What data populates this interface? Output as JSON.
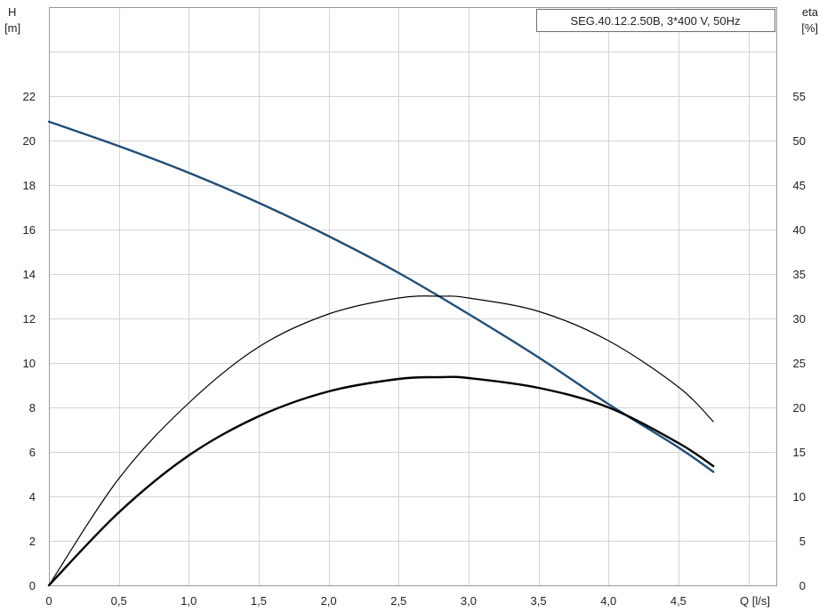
{
  "chart_data": {
    "type": "line",
    "title": "SEG.40.12.2.50B, 3*400 V, 50Hz",
    "xlabel": "Q [l/s]",
    "ylabel_left": [
      "H",
      "[m]"
    ],
    "ylabel_right": [
      "eta",
      "[%]"
    ],
    "xlim": [
      0,
      5.2
    ],
    "ylim_left": [
      0,
      26
    ],
    "ylim_right": [
      0,
      65
    ],
    "grid": true,
    "x_ticks": [
      "0",
      "0,5",
      "1,0",
      "1,5",
      "2,0",
      "2,5",
      "3,0",
      "3,5",
      "4,0",
      "4,5"
    ],
    "x_tick_values": [
      0,
      0.5,
      1.0,
      1.5,
      2.0,
      2.5,
      3.0,
      3.5,
      4.0,
      4.5
    ],
    "y_left_ticks": [
      "0",
      "2",
      "4",
      "6",
      "8",
      "10",
      "12",
      "14",
      "16",
      "18",
      "20",
      "22"
    ],
    "y_left_tick_values": [
      0,
      2,
      4,
      6,
      8,
      10,
      12,
      14,
      16,
      18,
      20,
      22
    ],
    "y_right_ticks": [
      "0",
      "5",
      "10",
      "15",
      "20",
      "25",
      "30",
      "35",
      "40",
      "45",
      "50",
      "55"
    ],
    "y_right_tick_values": [
      0,
      5,
      10,
      15,
      20,
      25,
      30,
      35,
      40,
      45,
      50,
      55
    ],
    "series": [
      {
        "axis": "left",
        "color": "#1f4e79",
        "width": 2.4,
        "x": [
          0,
          0.5,
          1.0,
          1.5,
          2.0,
          2.5,
          3.0,
          3.5,
          4.0,
          4.5,
          4.75
        ],
        "y": [
          20.85,
          19.75,
          18.55,
          17.2,
          15.7,
          14.05,
          12.2,
          10.25,
          8.15,
          6.2,
          5.1
        ]
      },
      {
        "axis": "right",
        "color": "#000000",
        "width": 1.2,
        "x": [
          0,
          0.5,
          1.0,
          1.5,
          2.0,
          2.5,
          2.8,
          3.0,
          3.5,
          4.0,
          4.5,
          4.75
        ],
        "y": [
          0,
          12.0,
          20.5,
          26.8,
          30.5,
          32.3,
          32.5,
          32.3,
          30.8,
          27.5,
          22.3,
          18.4
        ]
      },
      {
        "axis": "right",
        "color": "#000000",
        "width": 2.4,
        "x": [
          0,
          0.5,
          1.0,
          1.5,
          2.0,
          2.5,
          2.8,
          3.0,
          3.5,
          4.0,
          4.5,
          4.75
        ],
        "y": [
          0,
          8.2,
          14.6,
          19.0,
          21.8,
          23.2,
          23.4,
          23.3,
          22.2,
          20.0,
          16.0,
          13.4
        ]
      }
    ]
  }
}
